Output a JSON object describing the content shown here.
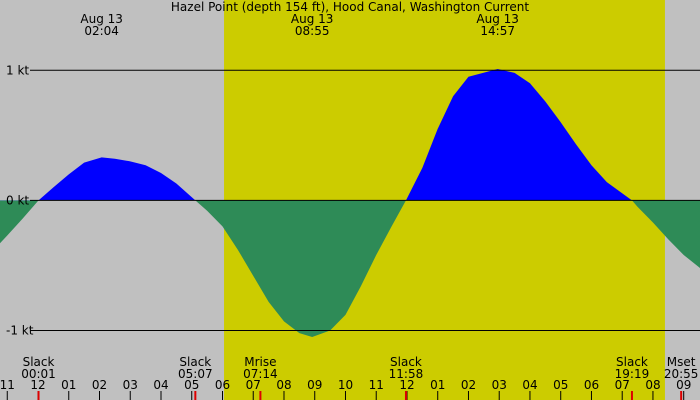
{
  "chart_data": {
    "type": "area",
    "title": "Hazel Point (depth 154 ft), Hood Canal, Washington Current",
    "background_color": "#c0c0c0",
    "daylight_color": "#cccc00",
    "daylight": [
      6.05,
      20.39
    ],
    "flood_color": "#0000ff",
    "ebb_color": "#2e8b57",
    "x": [
      -1.236,
      -1,
      -0.5,
      0.017,
      0.5,
      1,
      1.5,
      2.07,
      2.5,
      3,
      3.5,
      4,
      4.5,
      5.117,
      5.5,
      6,
      6.5,
      7,
      7.5,
      8,
      8.5,
      8.917,
      9.5,
      10,
      10.5,
      11,
      11.5,
      11.967,
      12.5,
      13,
      13.5,
      14,
      14.95,
      15.5,
      16,
      16.5,
      17,
      17.5,
      18,
      18.5,
      19.317,
      19.5,
      20,
      20.5,
      21,
      21.53
    ],
    "values": [
      -0.33,
      -0.27,
      -0.14,
      0,
      0.1,
      0.2,
      0.29,
      0.33,
      0.32,
      0.3,
      0.27,
      0.21,
      0.13,
      0,
      -0.08,
      -0.2,
      -0.38,
      -0.58,
      -0.78,
      -0.93,
      -1.02,
      -1.05,
      -1.0,
      -0.88,
      -0.66,
      -0.42,
      -0.2,
      0,
      0.25,
      0.55,
      0.8,
      0.95,
      1.01,
      0.98,
      0.9,
      0.76,
      0.6,
      0.43,
      0.27,
      0.14,
      0,
      -0.05,
      -0.17,
      -0.3,
      -0.42,
      -0.52
    ],
    "xlim": [
      -1.236,
      21.53
    ],
    "ylim": [
      -1.15,
      1.54
    ],
    "yticks": [
      {
        "value": 1,
        "label": "1 kt"
      },
      {
        "value": 0,
        "label": "0 kt"
      },
      {
        "value": -1,
        "label": "-1 kt"
      }
    ],
    "xticks": [
      {
        "value": -1,
        "label": "11"
      },
      {
        "value": 0,
        "label": "12"
      },
      {
        "value": 1,
        "label": "01"
      },
      {
        "value": 2,
        "label": "02"
      },
      {
        "value": 3,
        "label": "03"
      },
      {
        "value": 4,
        "label": "04"
      },
      {
        "value": 5,
        "label": "05"
      },
      {
        "value": 6,
        "label": "06"
      },
      {
        "value": 7,
        "label": "07"
      },
      {
        "value": 8,
        "label": "08"
      },
      {
        "value": 9,
        "label": "09"
      },
      {
        "value": 10,
        "label": "10"
      },
      {
        "value": 11,
        "label": "11"
      },
      {
        "value": 12,
        "label": "12"
      },
      {
        "value": 13,
        "label": "01"
      },
      {
        "value": 14,
        "label": "02"
      },
      {
        "value": 15,
        "label": "03"
      },
      {
        "value": 16,
        "label": "04"
      },
      {
        "value": 17,
        "label": "05"
      },
      {
        "value": 18,
        "label": "06"
      },
      {
        "value": 19,
        "label": "07"
      },
      {
        "value": 20,
        "label": "08"
      },
      {
        "value": 21,
        "label": "09"
      }
    ],
    "top_annotations": [
      {
        "x": 2.07,
        "date": "Aug 13",
        "time": "02:04"
      },
      {
        "x": 8.917,
        "date": "Aug 13",
        "time": "08:55"
      },
      {
        "x": 14.95,
        "date": "Aug 13",
        "time": "14:57"
      }
    ],
    "bottom_annotations": [
      {
        "x": 0.017,
        "event": "Slack",
        "time": "00:01"
      },
      {
        "x": 5.117,
        "event": "Slack",
        "time": "05:07"
      },
      {
        "x": 7.233,
        "event": "Mrise",
        "time": "07:14"
      },
      {
        "x": 11.967,
        "event": "Slack",
        "time": "11:58"
      },
      {
        "x": 19.317,
        "event": "Slack",
        "time": "19:19"
      },
      {
        "x": 20.917,
        "event": "Mset",
        "time": "20:55"
      }
    ]
  }
}
